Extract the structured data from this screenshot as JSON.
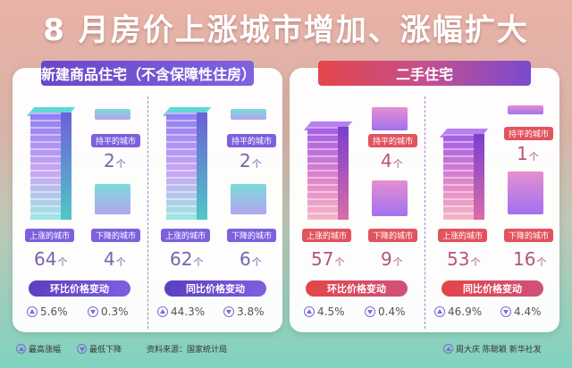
{
  "title": "8 月房价上涨城市增加、涨幅扩大",
  "panels": [
    {
      "title": "新建商品住宅（不含保障性住房）",
      "columns": [
        {
          "flat_label": "持平的城市",
          "flat_count": "2",
          "up_label": "上涨的城市",
          "up_count": "64",
          "down_label": "下降的城市",
          "down_count": "4",
          "band": "环比价格变动",
          "max_pct": "5.6%",
          "min_pct": "0.3%"
        },
        {
          "flat_label": "持平的城市",
          "flat_count": "2",
          "up_label": "上涨的城市",
          "up_count": "62",
          "down_label": "下降的城市",
          "down_count": "6",
          "band": "同比价格变动",
          "max_pct": "44.3%",
          "min_pct": "3.8%"
        }
      ]
    },
    {
      "title": "二手住宅",
      "columns": [
        {
          "flat_label": "持平的城市",
          "flat_count": "4",
          "up_label": "上涨的城市",
          "up_count": "57",
          "down_label": "下降的城市",
          "down_count": "9",
          "band": "环比价格变动",
          "max_pct": "4.5%",
          "min_pct": "0.4%"
        },
        {
          "flat_label": "持平的城市",
          "flat_count": "1",
          "up_label": "上涨的城市",
          "up_count": "53",
          "down_label": "下降的城市",
          "down_count": "16",
          "band": "同比价格变动",
          "max_pct": "46.9%",
          "min_pct": "4.4%"
        }
      ]
    }
  ],
  "unit": "个",
  "footer": {
    "legend_up": "最高涨幅",
    "legend_down": "最低下降",
    "source": "资料来源：国家统计局",
    "credits": "周大庆  陈聪颖  新华社发"
  }
}
